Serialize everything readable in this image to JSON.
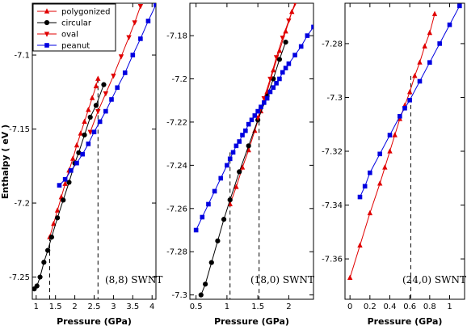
{
  "chart_data": [
    {
      "type": "line",
      "ylabel": "Enthalpy ( eV )",
      "xlabel": "Pressure (GPa)",
      "xlim": [
        0.9,
        4.1
      ],
      "ylim": [
        -7.265,
        -7.065
      ],
      "xticks": [
        1,
        1.5,
        2,
        2.5,
        3,
        3.5,
        4
      ],
      "xtick_labels": [
        "1",
        "1.5",
        "2",
        "2.5",
        "3",
        "3.5",
        "4"
      ],
      "yticks": [
        -7.25,
        -7.2,
        -7.15,
        -7.1
      ],
      "ytick_labels": [
        "-7.25",
        "-7.2",
        "-7.15",
        "-7.1"
      ],
      "annotation": "(8,8) SWNT",
      "vlines": [
        1.35,
        2.6
      ],
      "legend_position": "top-left",
      "series": [
        {
          "name": "polygonized",
          "color": "#e00000",
          "marker": "triangle-up",
          "x": [
            1.35,
            1.45,
            1.55,
            1.65,
            1.75,
            1.85,
            1.95,
            2.05,
            2.15,
            2.25,
            2.35,
            2.45,
            2.55,
            2.6
          ],
          "y": [
            -7.223,
            -7.214,
            -7.205,
            -7.196,
            -7.187,
            -7.178,
            -7.17,
            -7.161,
            -7.153,
            -7.145,
            -7.137,
            -7.129,
            -7.121,
            -7.116
          ]
        },
        {
          "name": "circular",
          "color": "#000000",
          "marker": "circle",
          "x": [
            0.95,
            1.02,
            1.1,
            1.2,
            1.3,
            1.4,
            1.55,
            1.7,
            1.85,
            2.0,
            2.1,
            2.25,
            2.4,
            2.55,
            2.75
          ],
          "y": [
            -7.258,
            -7.256,
            -7.25,
            -7.24,
            -7.232,
            -7.223,
            -7.21,
            -7.198,
            -7.186,
            -7.173,
            -7.166,
            -7.154,
            -7.142,
            -7.134,
            -7.12
          ]
        },
        {
          "name": "oval",
          "color": "#e00000",
          "marker": "triangle-down",
          "x": [
            2.4,
            2.6,
            2.8,
            3.0,
            3.2,
            3.4,
            3.55,
            3.7
          ],
          "y": [
            -7.152,
            -7.138,
            -7.126,
            -7.114,
            -7.101,
            -7.088,
            -7.078,
            -7.067
          ]
        },
        {
          "name": "peanut",
          "color": "#0000e0",
          "marker": "square",
          "x": [
            1.6,
            1.75,
            1.9,
            2.05,
            2.2,
            2.35,
            2.5,
            2.65,
            2.8,
            2.95,
            3.1,
            3.3,
            3.5,
            3.7,
            3.9,
            4.1
          ],
          "y": [
            -7.188,
            -7.184,
            -7.178,
            -7.173,
            -7.167,
            -7.16,
            -7.152,
            -7.145,
            -7.138,
            -7.13,
            -7.122,
            -7.112,
            -7.1,
            -7.089,
            -7.077,
            -7.066
          ]
        }
      ]
    },
    {
      "type": "line",
      "xlabel": "Pressure (GPa)",
      "xlim": [
        0.4,
        2.4
      ],
      "ylim": [
        -7.302,
        -7.165
      ],
      "xticks": [
        0.5,
        1,
        1.5,
        2
      ],
      "xtick_labels": [
        "0.5",
        "1",
        "1.5",
        "2"
      ],
      "yticks": [
        -7.3,
        -7.28,
        -7.26,
        -7.24,
        -7.22,
        -7.2,
        -7.18
      ],
      "ytick_labels": [
        "-7.3",
        "-7.28",
        "-7.26",
        "-7.24",
        "-7.22",
        "-7.2",
        "-7.18"
      ],
      "annotation": "(18,0) SWNT",
      "vlines": [
        1.05,
        1.52
      ],
      "series": [
        {
          "name": "polygonized",
          "color": "#e00000",
          "marker": "triangle-up",
          "x": [
            1.05,
            1.15,
            1.25,
            1.35,
            1.45,
            1.55,
            1.65,
            1.75,
            1.85,
            1.95,
            2.05,
            2.15
          ],
          "y": [
            -7.258,
            -7.25,
            -7.241,
            -7.233,
            -7.224,
            -7.215,
            -7.206,
            -7.196,
            -7.187,
            -7.178,
            -7.169,
            -7.163
          ]
        },
        {
          "name": "circular",
          "color": "#000000",
          "marker": "circle",
          "x": [
            0.58,
            0.65,
            0.75,
            0.85,
            0.95,
            1.05,
            1.2,
            1.35,
            1.5,
            1.65,
            1.75,
            1.85,
            1.95
          ],
          "y": [
            -7.3,
            -7.295,
            -7.285,
            -7.275,
            -7.265,
            -7.256,
            -7.243,
            -7.231,
            -7.219,
            -7.208,
            -7.2,
            -7.191,
            -7.183
          ]
        },
        {
          "name": "oval",
          "color": "#e00000",
          "marker": "triangle-down",
          "x": [
            1.5,
            1.6,
            1.7,
            1.8,
            1.9,
            2.0,
            2.1,
            2.2
          ],
          "y": [
            -7.218,
            -7.209,
            -7.2,
            -7.19,
            -7.181,
            -7.173,
            -7.165,
            -7.163
          ]
        },
        {
          "name": "peanut",
          "color": "#0000e0",
          "marker": "square",
          "x": [
            0.5,
            0.6,
            0.7,
            0.8,
            0.9,
            1.0,
            1.05,
            1.1,
            1.15,
            1.2,
            1.25,
            1.3,
            1.35,
            1.4,
            1.45,
            1.5,
            1.55,
            1.6,
            1.65,
            1.7,
            1.75,
            1.8,
            1.85,
            1.9,
            1.95,
            2.0,
            2.1,
            2.2,
            2.3,
            2.4
          ],
          "y": [
            -7.27,
            -7.264,
            -7.258,
            -7.252,
            -7.246,
            -7.24,
            -7.237,
            -7.234,
            -7.231,
            -7.229,
            -7.226,
            -7.224,
            -7.221,
            -7.219,
            -7.217,
            -7.215,
            -7.213,
            -7.211,
            -7.209,
            -7.206,
            -7.204,
            -7.202,
            -7.2,
            -7.197,
            -7.195,
            -7.193,
            -7.189,
            -7.185,
            -7.18,
            -7.176
          ]
        }
      ]
    },
    {
      "type": "line",
      "xlabel": "Pressure (GPa)",
      "xlim": [
        -0.05,
        1.15
      ],
      "ylim": [
        -7.375,
        -7.265
      ],
      "xticks": [
        0,
        0.2,
        0.4,
        0.6,
        0.8,
        1
      ],
      "xtick_labels": [
        "0",
        "0.2",
        "0.4",
        "0.6",
        "0.8",
        "1"
      ],
      "yticks": [
        -7.36,
        -7.34,
        -7.32,
        -7.3,
        -7.28
      ],
      "ytick_labels": [
        "-7.36",
        "-7.34",
        "-7.32",
        "-7.3",
        "-7.28"
      ],
      "annotation": "(24,0) SWNT",
      "vlines": [
        0.61
      ],
      "series": [
        {
          "name": "polygonized",
          "color": "#e00000",
          "marker": "triangle-up",
          "x": [
            0.0,
            0.1,
            0.2,
            0.3,
            0.35,
            0.4,
            0.45,
            0.5,
            0.55,
            0.6,
            0.65,
            0.7,
            0.75,
            0.8,
            0.85
          ],
          "y": [
            -7.367,
            -7.355,
            -7.343,
            -7.332,
            -7.326,
            -7.32,
            -7.314,
            -7.308,
            -7.303,
            -7.298,
            -7.292,
            -7.287,
            -7.281,
            -7.276,
            -7.269
          ]
        },
        {
          "name": "peanut",
          "color": "#0000e0",
          "marker": "square",
          "x": [
            0.1,
            0.15,
            0.2,
            0.3,
            0.4,
            0.5,
            0.55,
            0.6,
            0.7,
            0.8,
            0.9,
            1.0,
            1.1
          ],
          "y": [
            -7.337,
            -7.333,
            -7.328,
            -7.321,
            -7.314,
            -7.307,
            -7.304,
            -7.301,
            -7.294,
            -7.287,
            -7.28,
            -7.273,
            -7.266
          ]
        }
      ]
    }
  ]
}
